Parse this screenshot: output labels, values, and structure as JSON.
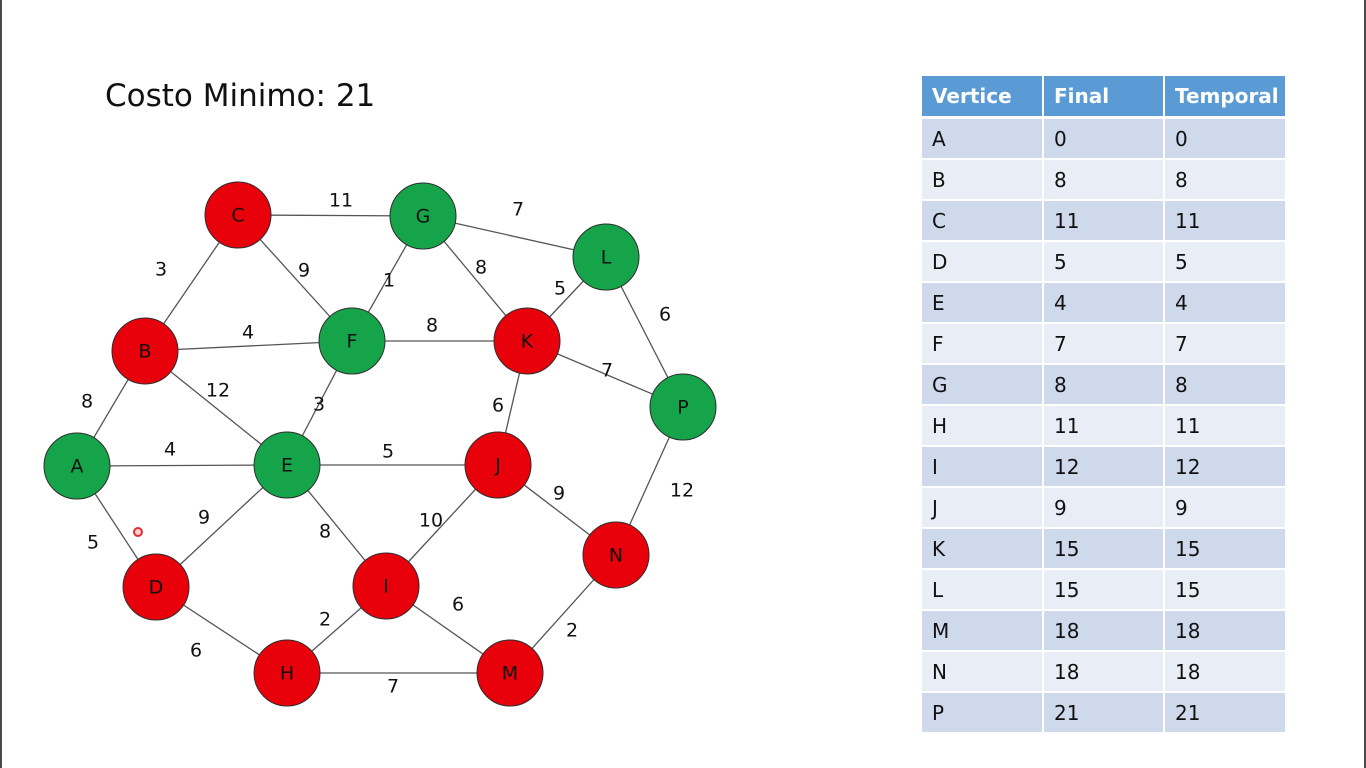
{
  "title": "Costo Minimo: 21",
  "colors": {
    "visited": "#e8000b",
    "tree": "#16a44a",
    "edge": "#555555",
    "header": "#5b9bd5",
    "row_odd": "#cfd9ec",
    "row_even": "#e9edf6"
  },
  "graph": {
    "nodes": [
      {
        "id": "A",
        "label": "A",
        "state": "tree"
      },
      {
        "id": "B",
        "label": "B",
        "state": "visited"
      },
      {
        "id": "C",
        "label": "C",
        "state": "visited"
      },
      {
        "id": "D",
        "label": "D",
        "state": "visited"
      },
      {
        "id": "E",
        "label": "E",
        "state": "tree"
      },
      {
        "id": "F",
        "label": "F",
        "state": "tree"
      },
      {
        "id": "G",
        "label": "G",
        "state": "tree"
      },
      {
        "id": "H",
        "label": "H",
        "state": "visited"
      },
      {
        "id": "I",
        "label": "I",
        "state": "visited"
      },
      {
        "id": "J",
        "label": "J",
        "state": "visited"
      },
      {
        "id": "K",
        "label": "K",
        "state": "visited"
      },
      {
        "id": "L",
        "label": "L",
        "state": "tree"
      },
      {
        "id": "M",
        "label": "M",
        "state": "visited"
      },
      {
        "id": "N",
        "label": "N",
        "state": "visited"
      },
      {
        "id": "P",
        "label": "P",
        "state": "tree"
      }
    ],
    "edges": [
      {
        "from": "C",
        "to": "G",
        "weight": "11"
      },
      {
        "from": "G",
        "to": "L",
        "weight": "7"
      },
      {
        "from": "C",
        "to": "B",
        "weight": "3"
      },
      {
        "from": "C",
        "to": "F",
        "weight": "9"
      },
      {
        "from": "G",
        "to": "F",
        "weight": "1"
      },
      {
        "from": "G",
        "to": "K",
        "weight": "8"
      },
      {
        "from": "K",
        "to": "L",
        "weight": "5"
      },
      {
        "from": "L",
        "to": "P",
        "weight": "6"
      },
      {
        "from": "B",
        "to": "F",
        "weight": "4"
      },
      {
        "from": "F",
        "to": "K",
        "weight": "8"
      },
      {
        "from": "B",
        "to": "E",
        "weight": "12"
      },
      {
        "from": "K",
        "to": "P",
        "weight": "7"
      },
      {
        "from": "B",
        "to": "A",
        "weight": "8"
      },
      {
        "from": "F",
        "to": "E",
        "weight": "3"
      },
      {
        "from": "K",
        "to": "J",
        "weight": "6"
      },
      {
        "from": "A",
        "to": "E",
        "weight": "4"
      },
      {
        "from": "E",
        "to": "J",
        "weight": "5"
      },
      {
        "from": "J",
        "to": "N",
        "weight": "9"
      },
      {
        "from": "P",
        "to": "N",
        "weight": "12"
      },
      {
        "from": "A",
        "to": "D",
        "weight": "5"
      },
      {
        "from": "E",
        "to": "D",
        "weight": "9"
      },
      {
        "from": "E",
        "to": "I",
        "weight": "8"
      },
      {
        "from": "J",
        "to": "I",
        "weight": "10"
      },
      {
        "from": "N",
        "to": "M",
        "weight": "2"
      },
      {
        "from": "I",
        "to": "M",
        "weight": "6"
      },
      {
        "from": "H",
        "to": "I",
        "weight": "2"
      },
      {
        "from": "D",
        "to": "H",
        "weight": "6"
      },
      {
        "from": "H",
        "to": "M",
        "weight": "7"
      }
    ]
  },
  "table": {
    "headers": [
      "Vertice",
      "Final",
      "Temporal"
    ],
    "rows": [
      [
        "A",
        "0",
        "0"
      ],
      [
        "B",
        "8",
        "8"
      ],
      [
        "C",
        "11",
        "11"
      ],
      [
        "D",
        "5",
        "5"
      ],
      [
        "E",
        "4",
        "4"
      ],
      [
        "F",
        "7",
        "7"
      ],
      [
        "G",
        "8",
        "8"
      ],
      [
        "H",
        "11",
        "11"
      ],
      [
        "I",
        "12",
        "12"
      ],
      [
        "J",
        "9",
        "9"
      ],
      [
        "K",
        "15",
        "15"
      ],
      [
        "L",
        "15",
        "15"
      ],
      [
        "M",
        "18",
        "18"
      ],
      [
        "N",
        "18",
        "18"
      ],
      [
        "P",
        "21",
        "21"
      ]
    ]
  }
}
